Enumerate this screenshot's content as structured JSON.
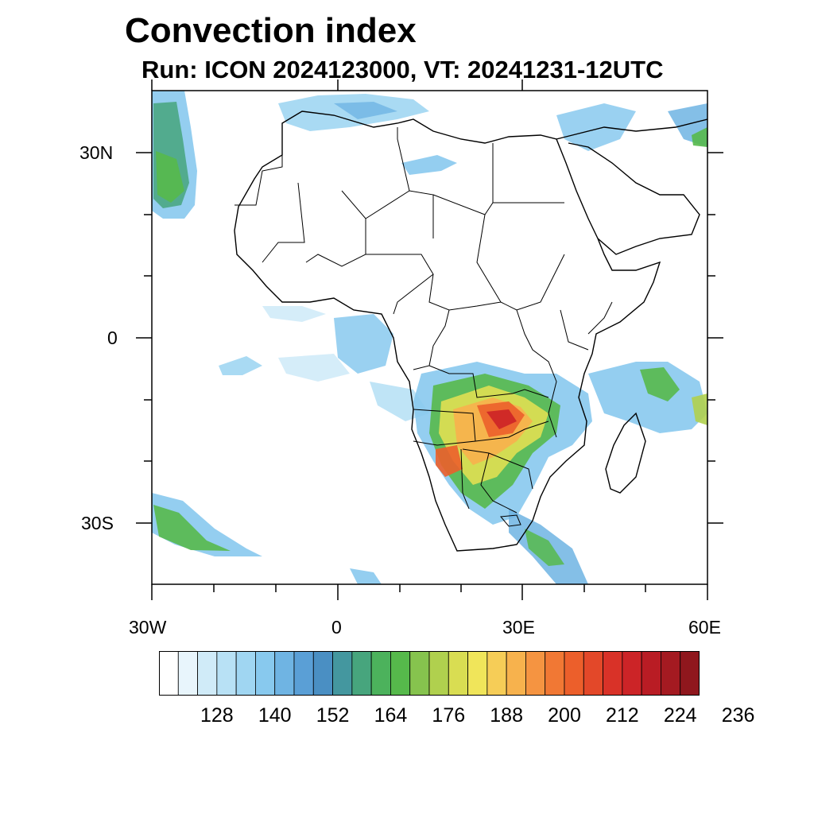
{
  "title": "Convection index",
  "subtitle": "Run: ICON 2024123000,  VT: 20241231-12UTC",
  "map": {
    "lon_range": [
      -30,
      60
    ],
    "lat_range": [
      -40,
      40
    ],
    "x_ticks": [
      "30W",
      "0",
      "30E",
      "60E"
    ],
    "y_ticks": [
      "30N",
      "0",
      "30S"
    ]
  },
  "colorbar": {
    "colors": [
      "#ffffff",
      "#e8f5fc",
      "#d0ebf8",
      "#b8e1f5",
      "#a0d6f2",
      "#88c9ee",
      "#6fb4e3",
      "#5a9fd6",
      "#4a8fc3",
      "#44979f",
      "#47a57d",
      "#4cb25c",
      "#56b94b",
      "#86c34e",
      "#b0d04e",
      "#d9dd52",
      "#f0e55a",
      "#f6cd57",
      "#f7b24d",
      "#f59441",
      "#f17834",
      "#ec5f2b",
      "#e34829",
      "#d93228",
      "#cc2427",
      "#b91c24",
      "#a41a21",
      "#8f171d"
    ],
    "labels": [
      "128",
      "140",
      "152",
      "164",
      "176",
      "188",
      "200",
      "212",
      "224",
      "236"
    ]
  }
}
